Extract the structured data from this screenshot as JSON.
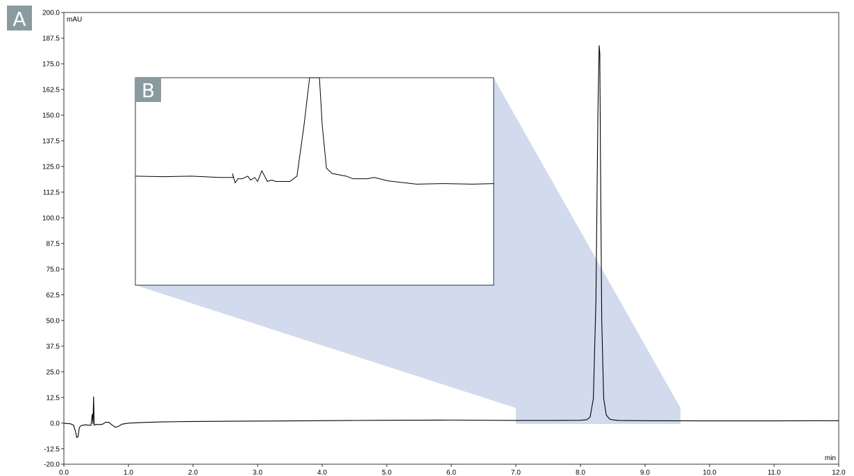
{
  "chart_data": [
    {
      "panel": "A",
      "type": "line",
      "title": "",
      "xlabel": "min",
      "ylabel": "mAU",
      "xlim": [
        0.0,
        12.0
      ],
      "ylim": [
        -20.0,
        200.0
      ],
      "x_ticks": [
        "0.0",
        "1.0",
        "2.0",
        "3.0",
        "4.0",
        "5.0",
        "6.0",
        "7.0",
        "8.0",
        "9.0",
        "10.0",
        "11.0",
        "12.0"
      ],
      "y_ticks": [
        "-20.0",
        "-12.5",
        "0.0",
        "12.5",
        "25.0",
        "37.5",
        "50.0",
        "62.5",
        "75.0",
        "87.5",
        "100.0",
        "112.5",
        "125.0",
        "137.5",
        "150.0",
        "162.5",
        "175.0",
        "187.5",
        "200.0"
      ],
      "grid": false,
      "zoom_region_x": [
        7.0,
        9.55
      ],
      "series": [
        {
          "x": [
            0.0,
            0.05,
            0.1,
            0.15,
            0.18,
            0.2,
            0.22,
            0.24,
            0.27,
            0.3,
            0.33,
            0.38,
            0.42,
            0.44,
            0.45,
            0.46,
            0.47,
            0.48,
            0.5,
            0.55,
            0.6,
            0.65,
            0.7,
            0.75,
            0.8,
            0.85,
            0.9,
            1.0,
            1.2,
            1.5,
            2.0,
            3.0,
            4.0,
            5.0,
            6.0,
            7.0,
            7.5,
            8.0,
            8.1,
            8.15,
            8.2,
            8.24,
            8.27,
            8.29,
            8.3,
            8.31,
            8.33,
            8.36,
            8.4,
            8.45,
            8.5,
            8.6,
            9.0,
            10.0,
            11.0,
            12.0
          ],
          "y": [
            0.0,
            -0.2,
            -0.3,
            -1.0,
            -4.0,
            -7.0,
            -6.5,
            -2.0,
            -1.2,
            -1.0,
            -0.8,
            -1.0,
            -1.0,
            4.5,
            -0.5,
            13.0,
            -1.0,
            -0.8,
            -0.6,
            -0.7,
            -0.5,
            0.5,
            0.3,
            -1.0,
            -2.0,
            -1.5,
            -0.5,
            0.0,
            0.3,
            0.6,
            0.8,
            1.0,
            1.2,
            1.4,
            1.5,
            1.3,
            1.3,
            1.4,
            1.7,
            3.0,
            12.0,
            60.0,
            150.0,
            184.0,
            180.0,
            130.0,
            50.0,
            12.0,
            4.0,
            2.0,
            1.6,
            1.3,
            1.2,
            1.1,
            1.1,
            1.2
          ]
        }
      ]
    },
    {
      "panel": "B",
      "type": "line",
      "title": "",
      "xlim": [
        7.0,
        9.55
      ],
      "ylim": [
        -3.0,
        4.8
      ],
      "series": [
        {
          "x": [
            7.0,
            7.2,
            7.4,
            7.6,
            7.7,
            7.69,
            7.71,
            7.73,
            7.76,
            7.8,
            7.82,
            7.85,
            7.87,
            7.9,
            7.94,
            7.97,
            8.0,
            8.1,
            8.15,
            8.2,
            8.24,
            8.27,
            8.3,
            8.31,
            8.33,
            8.36,
            8.4,
            8.5,
            8.55,
            8.6,
            8.65,
            8.7,
            8.8,
            9.0,
            9.2,
            9.4,
            9.55
          ],
          "y": [
            1.1,
            1.08,
            1.1,
            1.05,
            1.05,
            1.2,
            0.85,
            1.0,
            1.0,
            1.1,
            0.95,
            1.05,
            0.9,
            1.3,
            0.9,
            0.95,
            0.9,
            0.9,
            1.1,
            3.0,
            4.8,
            4.8,
            4.8,
            4.8,
            3.0,
            1.4,
            1.2,
            1.1,
            1.0,
            1.0,
            1.0,
            1.05,
            0.92,
            0.8,
            0.82,
            0.8,
            0.82
          ]
        }
      ]
    }
  ],
  "panels": {
    "a_label": "A",
    "b_label": "B",
    "badge_color": "#8a9ba0",
    "zoom_fill_color": "#b8c8e3"
  }
}
